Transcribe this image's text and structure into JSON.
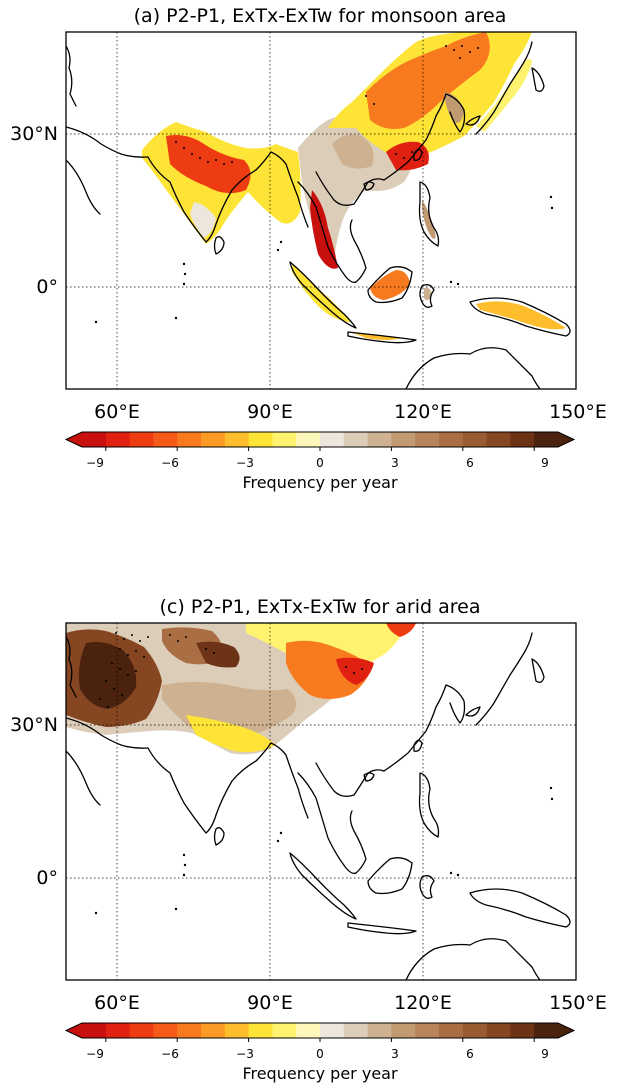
{
  "panels": [
    {
      "title": "(a) P2-P1, ExTx-ExTw for monsoon area",
      "lat_ticks": [
        "30°N",
        "0°"
      ],
      "lon_ticks": [
        "60°E",
        "90°E",
        "120°E",
        "150°E"
      ],
      "colorbar_ticks": [
        "−9",
        "−6",
        "−3",
        "0",
        "3",
        "6",
        "9"
      ],
      "colorbar_label": "Frequency per year"
    },
    {
      "title": "(c) P2-P1, ExTx-ExTw for arid area",
      "lat_ticks": [
        "30°N",
        "0°"
      ],
      "lon_ticks": [
        "60°E",
        "90°E",
        "120°E",
        "150°E"
      ],
      "colorbar_ticks": [
        "−9",
        "−6",
        "−3",
        "0",
        "3",
        "6",
        "9"
      ],
      "colorbar_label": "Frequency per year"
    }
  ],
  "map_extent": {
    "lon": [
      50,
      150
    ],
    "lat": [
      -20,
      50
    ]
  },
  "colorbar": {
    "range": [
      -10,
      10
    ],
    "step": 1,
    "extend": "both",
    "colors": [
      "#c8100e",
      "#e02010",
      "#ee3c12",
      "#f55a18",
      "#f87a1e",
      "#fb9a24",
      "#fdbd2c",
      "#fde437",
      "#fef26e",
      "#fdf7bc",
      "#ece6dc",
      "#dccdb8",
      "#cdb190",
      "#c29a72",
      "#b8845c",
      "#aa6e44",
      "#9a5a32",
      "#864622",
      "#6c3316",
      "#4a220e"
    ]
  }
}
